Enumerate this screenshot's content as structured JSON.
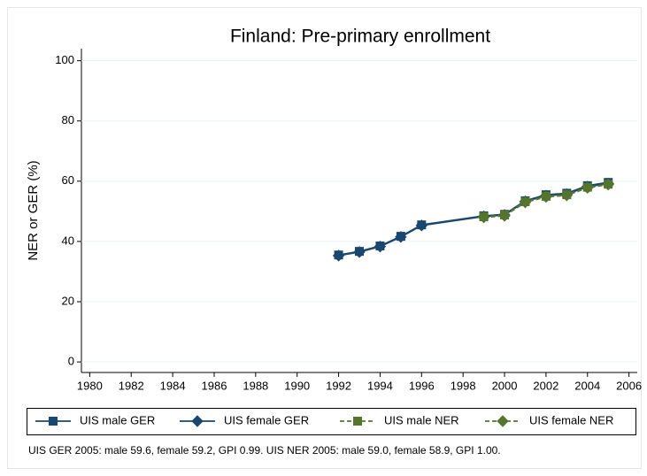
{
  "chart_data": {
    "type": "line",
    "title": "Finland: Pre-primary enrollment",
    "y_label": "NER or GER (%)",
    "note": "UIS GER 2005: male 59.6, female 59.2, GPI 0.99. UIS NER 2005: male 59.0, female 58.9, GPI 1.00.",
    "xlim": [
      1979.6,
      2006.4
    ],
    "ylim": [
      -3.5,
      104
    ],
    "xticks": [
      1980,
      1982,
      1984,
      1986,
      1988,
      1990,
      1992,
      1994,
      1996,
      1998,
      2000,
      2002,
      2004,
      2006
    ],
    "yticks": [
      0,
      20,
      40,
      60,
      80,
      100
    ],
    "grid": true,
    "legend": "bottom",
    "series": [
      {
        "name": "UIS male GER",
        "color": "#1a476f",
        "marker": "square",
        "dash": false,
        "x": [
          1992,
          1993,
          1994,
          1995,
          1996,
          1999,
          2000,
          2001,
          2002,
          2003,
          2004,
          2005
        ],
        "values": [
          35.5,
          36.7,
          38.5,
          41.7,
          45.5,
          48.5,
          49.0,
          53.5,
          55.5,
          56.0,
          58.5,
          59.6
        ]
      },
      {
        "name": "UIS female GER",
        "color": "#1a476f",
        "marker": "diamond",
        "dash": false,
        "x": [
          1992,
          1993,
          1994,
          1995,
          1996,
          1999,
          2000,
          2001,
          2002,
          2003,
          2004,
          2005
        ],
        "values": [
          35.3,
          36.5,
          38.3,
          41.5,
          45.3,
          48.3,
          48.8,
          53.3,
          55.2,
          55.7,
          58.2,
          59.2
        ]
      },
      {
        "name": "UIS male NER",
        "color": "#55752f",
        "marker": "square",
        "dash": true,
        "x": [
          1999,
          2000,
          2001,
          2002,
          2003,
          2004,
          2005
        ],
        "values": [
          48.2,
          48.8,
          53.2,
          55.0,
          55.5,
          58.0,
          59.0
        ]
      },
      {
        "name": "UIS female NER",
        "color": "#55752f",
        "marker": "diamond",
        "dash": true,
        "x": [
          1999,
          2000,
          2001,
          2002,
          2003,
          2004,
          2005
        ],
        "values": [
          48.0,
          48.5,
          53.0,
          54.8,
          55.3,
          57.8,
          58.9
        ]
      }
    ]
  }
}
